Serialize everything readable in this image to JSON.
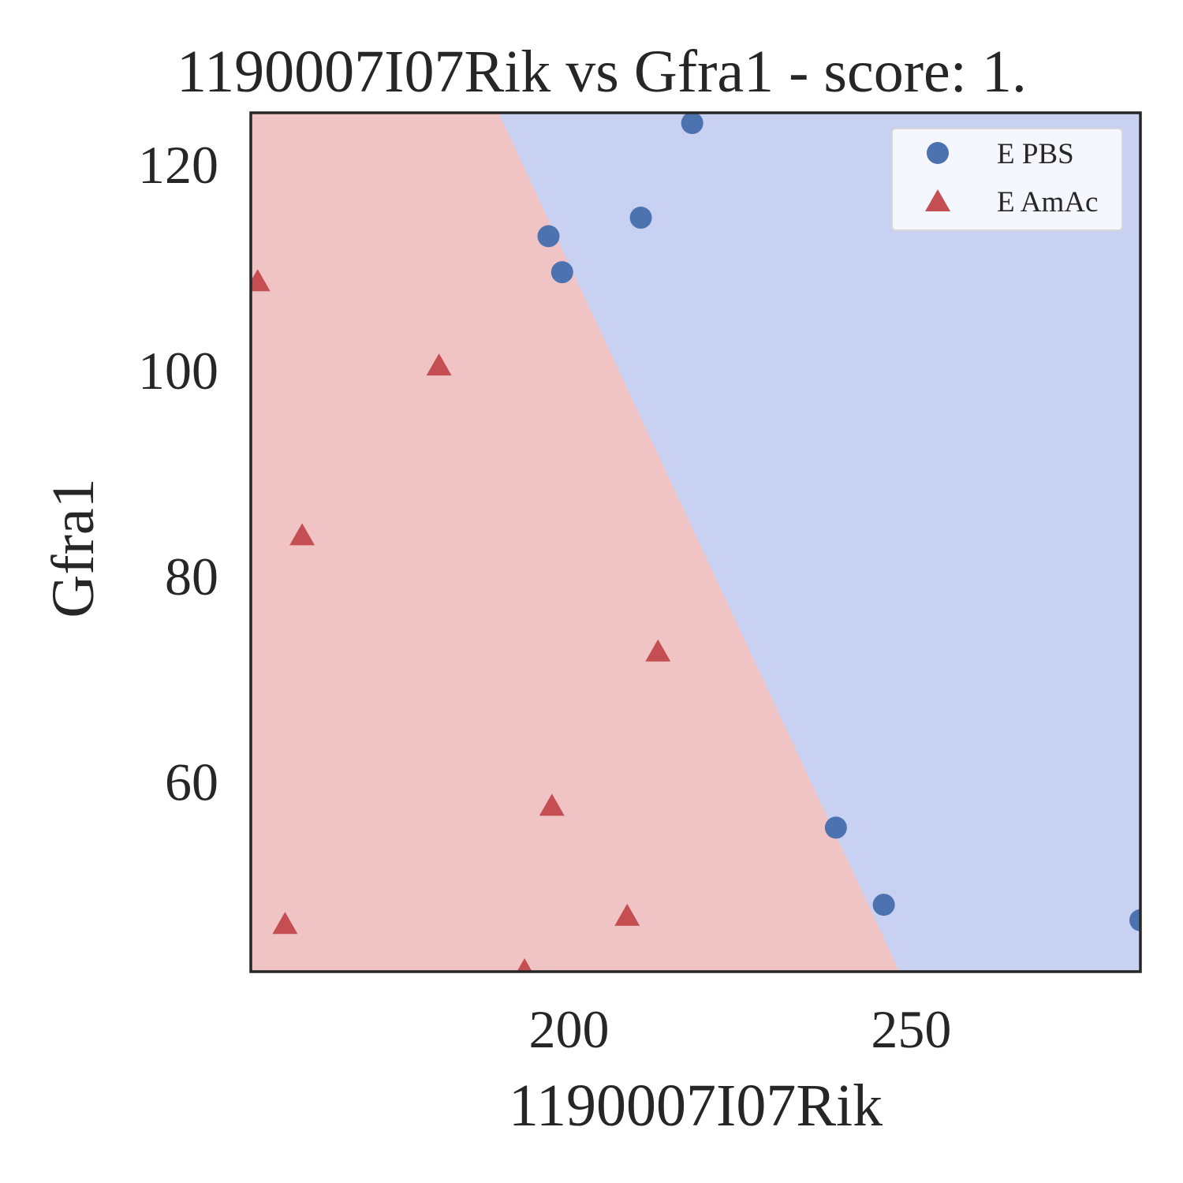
{
  "chart_data": {
    "type": "scatter",
    "title": "1190007I07Rik vs Gfra1 - score: 1.",
    "xlabel": "1190007I07Rik",
    "ylabel": "Gfra1",
    "xlim": [
      153.5,
      283.5
    ],
    "ylim": [
      41.5,
      125
    ],
    "xticks": [
      200,
      250
    ],
    "yticks": [
      60,
      80,
      100,
      120
    ],
    "grid": false,
    "legend_position": "top-right",
    "series": [
      {
        "name": "E PBS",
        "marker": "circle",
        "color": "#4c72b0",
        "points": [
          [
            218,
            124
          ],
          [
            197,
            113
          ],
          [
            199,
            109.5
          ],
          [
            210.5,
            114.8
          ],
          [
            239,
            55.5
          ],
          [
            246,
            48
          ],
          [
            283.5,
            46.5
          ]
        ]
      },
      {
        "name": "E AmAc",
        "marker": "triangle",
        "color": "#c44e52",
        "points": [
          [
            154.5,
            108.5
          ],
          [
            181,
            100.3
          ],
          [
            161,
            83.8
          ],
          [
            213,
            72.5
          ],
          [
            197.5,
            57.5
          ],
          [
            158.5,
            46
          ],
          [
            208.5,
            46.8
          ],
          [
            193.5,
            41.5
          ]
        ]
      }
    ],
    "decision_regions": {
      "boundary": [
        [
          189.7,
          125
        ],
        [
          248.3,
          41.5
        ]
      ],
      "left_color": "#f0c4c4",
      "right_color": "#c9d1f2"
    }
  }
}
